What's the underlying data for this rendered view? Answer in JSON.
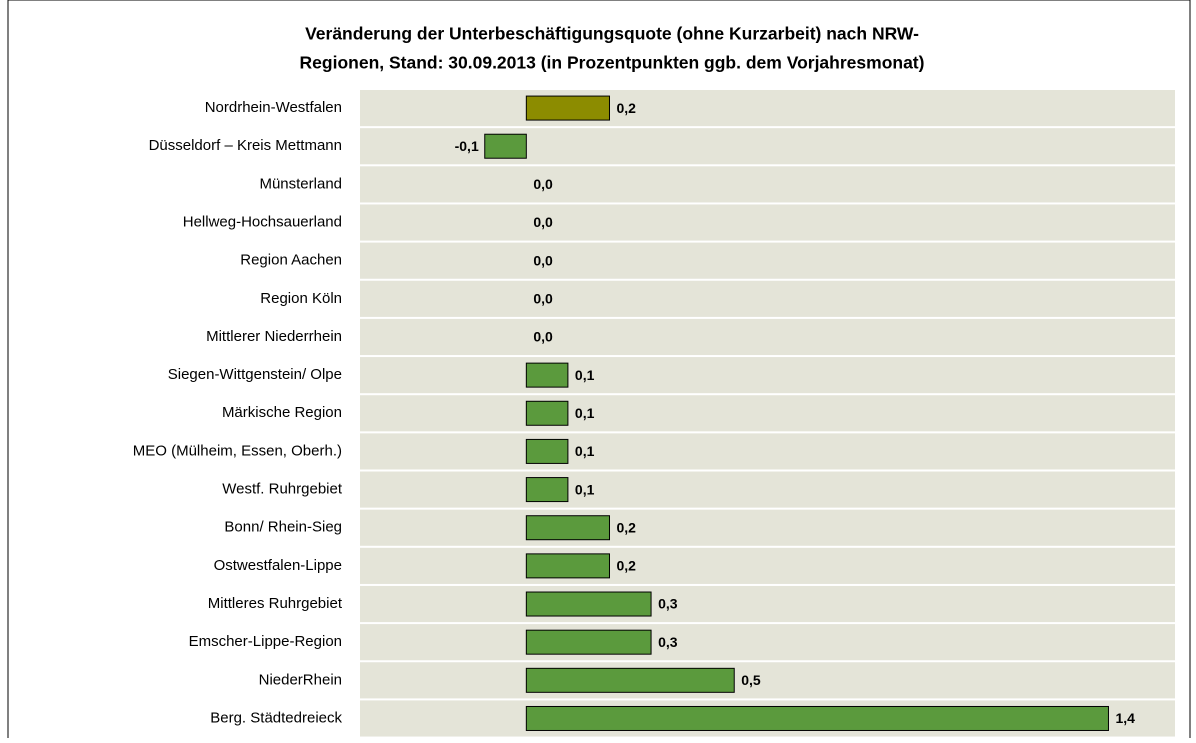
{
  "chart_data": {
    "type": "bar",
    "orientation": "horizontal",
    "title": [
      "Veränderung der Unterbeschäftigungsquote (ohne Kurzarbeit) nach NRW-",
      "Regionen, Stand: 30.09.2013 (in Prozentpunkten ggb. dem Vorjahresmonat)"
    ],
    "categories": [
      "Nordrhein-Westfalen",
      "Düsseldorf – Kreis Mettmann",
      "Münsterland",
      "Hellweg-Hochsauerland",
      "Region Aachen",
      "Region Köln",
      "Mittlerer Niederrhein",
      "Siegen-Wittgenstein/ Olpe",
      "Märkische Region",
      "MEO (Mülheim, Essen, Oberh.)",
      "Westf. Ruhrgebiet",
      "Bonn/ Rhein-Sieg",
      "Ostwestfalen-Lippe",
      "Mittleres Ruhrgebiet",
      "Emscher-Lippe-Region",
      "NiederRhein",
      "Berg. Städtedreieck"
    ],
    "values": [
      0.2,
      -0.1,
      0,
      0,
      0,
      0,
      0,
      0.1,
      0.1,
      0.1,
      0.1,
      0.2,
      0.2,
      0.3,
      0.3,
      0.5,
      1.4
    ],
    "value_labels": [
      "0,2",
      "-0,1",
      "0,0",
      "0,0",
      "0,0",
      "0,0",
      "0,0",
      "0,1",
      "0,1",
      "0,1",
      "0,1",
      "0,2",
      "0,2",
      "0,3",
      "0,3",
      "0,5",
      "1,4"
    ],
    "colors": [
      "#8c8c00",
      "#5b9a3d",
      "#5b9a3d",
      "#5b9a3d",
      "#5b9a3d",
      "#5b9a3d",
      "#5b9a3d",
      "#5b9a3d",
      "#5b9a3d",
      "#5b9a3d",
      "#5b9a3d",
      "#5b9a3d",
      "#5b9a3d",
      "#5b9a3d",
      "#5b9a3d",
      "#5b9a3d",
      "#5b9a3d"
    ],
    "xlim": [
      -0.4,
      1.56
    ]
  }
}
